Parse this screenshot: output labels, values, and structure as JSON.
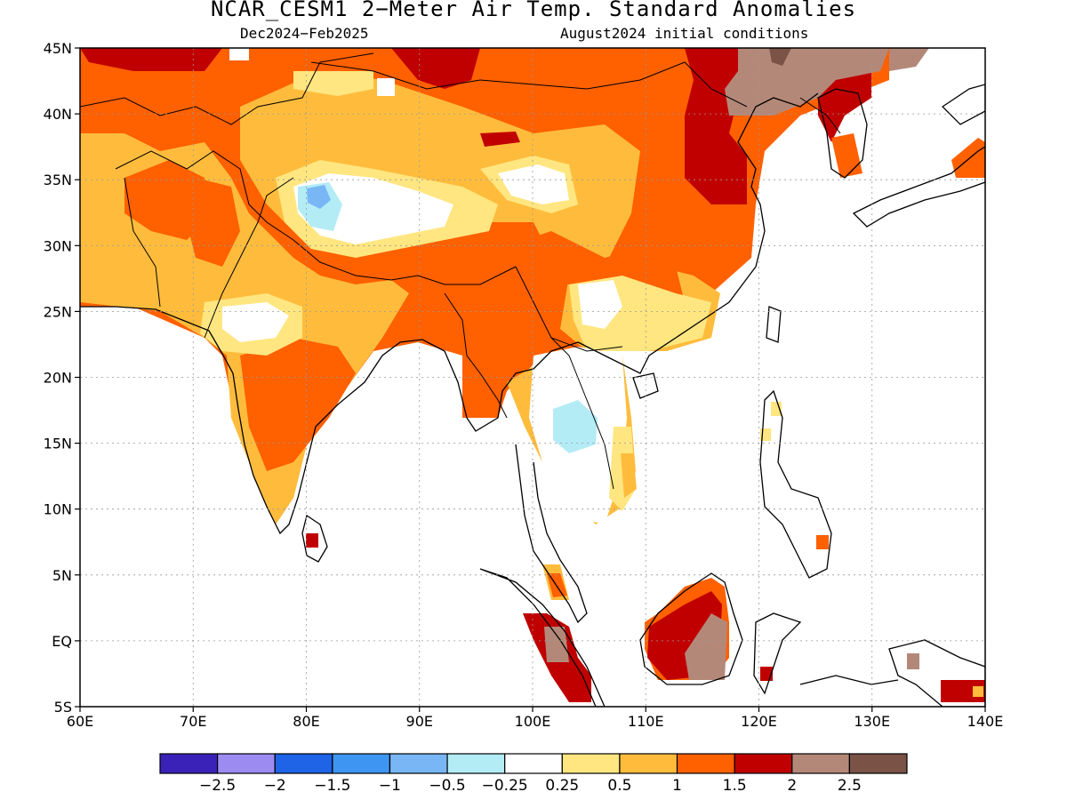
{
  "header": {
    "title": "NCAR_CESM1 2−Meter Air Temp. Standard Anomalies",
    "period": "Dec2024−Feb2025",
    "init": "August2024 initial conditions"
  },
  "map": {
    "lon_range": [
      60,
      140
    ],
    "lat_range": [
      -5,
      45
    ],
    "lon_ticks": [
      {
        "value": 60,
        "label": "60E"
      },
      {
        "value": 70,
        "label": "70E"
      },
      {
        "value": 80,
        "label": "80E"
      },
      {
        "value": 90,
        "label": "90E"
      },
      {
        "value": 100,
        "label": "100E"
      },
      {
        "value": 110,
        "label": "110E"
      },
      {
        "value": 120,
        "label": "120E"
      },
      {
        "value": 130,
        "label": "130E"
      },
      {
        "value": 140,
        "label": "140E"
      }
    ],
    "lat_ticks": [
      {
        "value": 45,
        "label": "45N"
      },
      {
        "value": 40,
        "label": "40N"
      },
      {
        "value": 35,
        "label": "35N"
      },
      {
        "value": 30,
        "label": "30N"
      },
      {
        "value": 25,
        "label": "25N"
      },
      {
        "value": 20,
        "label": "20N"
      },
      {
        "value": 15,
        "label": "15N"
      },
      {
        "value": 10,
        "label": "10N"
      },
      {
        "value": 5,
        "label": "5N"
      },
      {
        "value": 0,
        "label": "EQ"
      },
      {
        "value": -5,
        "label": "5S"
      }
    ],
    "grid": "dotted"
  },
  "colorbar": {
    "colors": [
      "#3a22b8",
      "#9c8cf2",
      "#1f63e6",
      "#3f95f2",
      "#78b6f6",
      "#b4ecf6",
      "#ffffff",
      "#ffe680",
      "#ffbc3c",
      "#ff6000",
      "#c00000",
      "#b48878",
      "#7a5246"
    ],
    "labels": [
      "−2.5",
      "−2",
      "−1.5",
      "−1",
      "−0.5",
      "−0.25",
      "0.25",
      "0.5",
      "1",
      "1.5",
      "2",
      "2.5"
    ]
  },
  "colors": {
    "orange": "#ff6000",
    "light_orange": "#ffbc3c",
    "yellow": "#ffe680",
    "dark_red": "#c00000",
    "brown": "#b48878",
    "dark_brown": "#7a5246",
    "light_blue": "#b4ecf6",
    "blue": "#78b6f6"
  }
}
